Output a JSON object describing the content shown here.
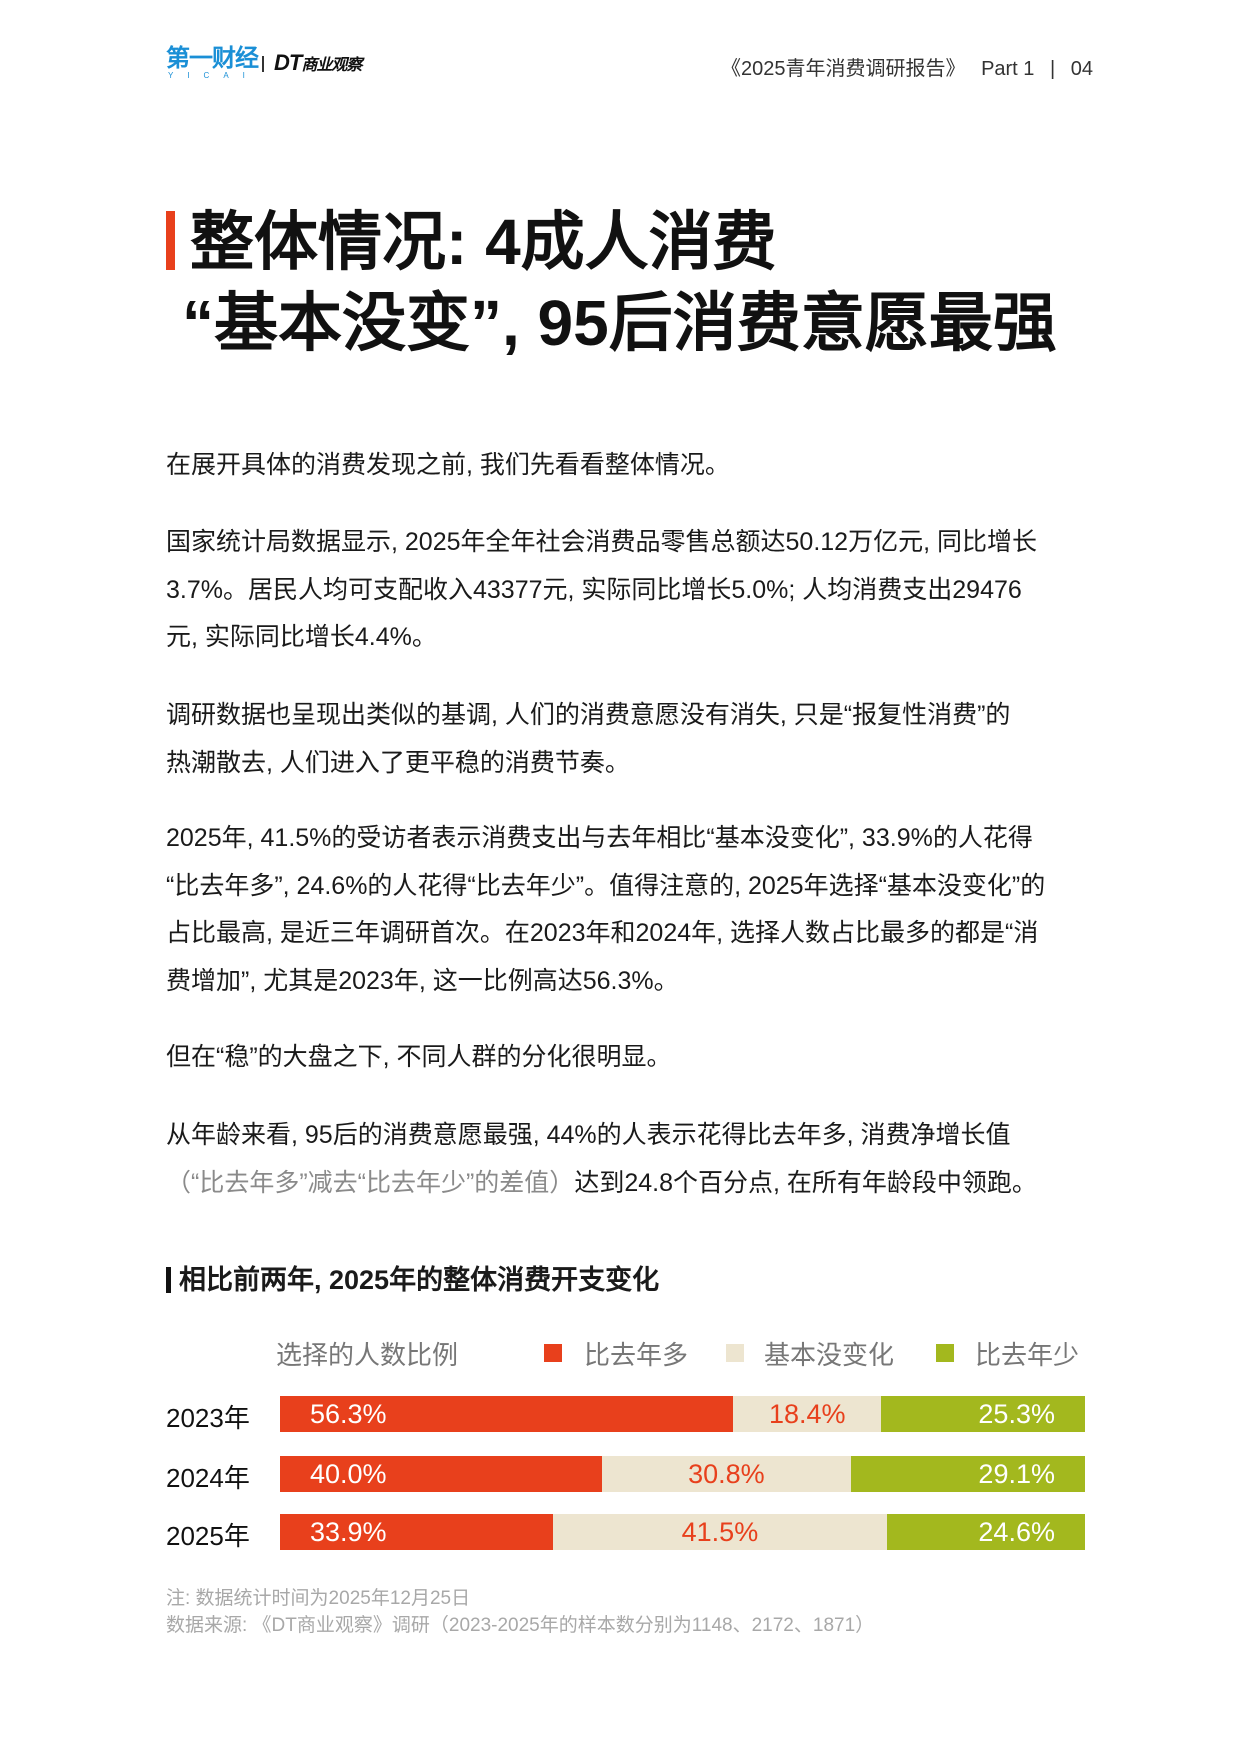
{
  "header": {
    "logo_yicai": "第一财经",
    "logo_yicai_sub": "YICAI",
    "logo_dt": "DT",
    "logo_dt_cn": "商业观察",
    "report_title": "《2025青年消费调研报告》",
    "part": "Part 1",
    "divider": "|",
    "page_number": "04"
  },
  "title": {
    "line1": "整体情况: 4成人消费",
    "line2": "“基本没变”, 95后消费意愿最强"
  },
  "paragraphs": [
    {
      "lines": [
        "在展开具体的消费发现之前, 我们先看看整体情况。"
      ]
    },
    {
      "lines": [
        "国家统计局数据显示, 2025年全年社会消费品零售总额达50.12万亿元, 同比增长",
        "3.7%。居民人均可支配收入43377元, 实际同比增长5.0%; 人均消费支出29476",
        "元, 实际同比增长4.4%。"
      ]
    },
    {
      "lines": [
        "调研数据也呈现出类似的基调, 人们的消费意愿没有消失, 只是“报复性消费”的",
        "热潮散去, 人们进入了更平稳的消费节奏。"
      ]
    },
    {
      "lines": [
        "2025年, 41.5%的受访者表示消费支出与去年相比“基本没变化”, 33.9%的人花得",
        "“比去年多”, 24.6%的人花得“比去年少”。值得注意的, 2025年选择“基本没变化”的",
        "占比最高, 是近三年调研首次。在2023年和2024年, 选择人数占比最多的都是“消",
        "费增加”, 尤其是2023年, 这一比例高达56.3%。"
      ]
    },
    {
      "lines": [
        "但在“稳”的大盘之下, 不同人群的分化很明显。"
      ]
    },
    {
      "lines": [
        "从年龄来看, 95后的消费意愿最强, 44%的人表示花得比去年多, 消费净增长值"
      ],
      "gray_note": "（“比去年多”减去“比去年少”的差值）",
      "tail": "达到24.8个百分点, 在所有年龄段中领跑。"
    }
  ],
  "chart_data": {
    "type": "bar",
    "stacked": true,
    "orientation": "horizontal",
    "title": "相比前两年, 2025年的整体消费开支变化",
    "axis_label": "选择的人数比例",
    "categories": [
      "2023年",
      "2024年",
      "2025年"
    ],
    "series": [
      {
        "name": "比去年多",
        "color": "#e8401c",
        "values": [
          56.3,
          40.0,
          33.9
        ],
        "labels": [
          "56.3%",
          "40.0%",
          "33.9%"
        ]
      },
      {
        "name": "基本没变化",
        "color": "#ede5d0",
        "values": [
          18.4,
          30.8,
          41.5
        ],
        "labels": [
          "18.4%",
          "30.8%",
          "41.5%"
        ]
      },
      {
        "name": "比去年少",
        "color": "#a3b81e",
        "values": [
          25.3,
          29.1,
          24.6
        ],
        "labels": [
          "25.3%",
          "29.1%",
          "24.6%"
        ]
      }
    ],
    "legend": "top"
  },
  "footnotes": {
    "note": "注: 数据统计时间为2025年12月25日",
    "source": "数据来源: 《DT商业观察》调研（2023-2025年的样本数分别为1148、2172、1871）"
  }
}
